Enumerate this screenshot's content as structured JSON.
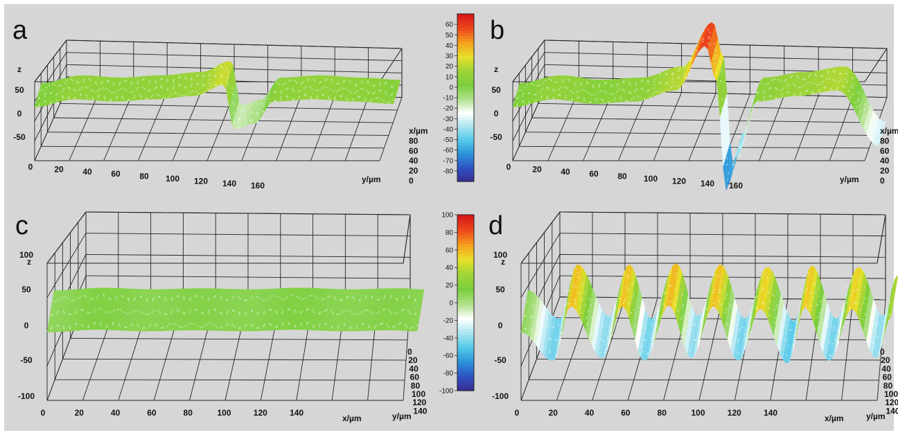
{
  "figure": {
    "background": "#d6d6d6",
    "border": "#ffffff"
  },
  "chart_data": [
    {
      "type": "surface3d",
      "panel": "a",
      "x_axis_label": "x/µm",
      "y_axis_label": "y/µm",
      "z_axis_label": "z",
      "y_ticks": [
        "0",
        "20",
        "40",
        "60",
        "80",
        "100",
        "120",
        "140",
        "160"
      ],
      "x_ticks": [
        "x/µm",
        "80",
        "60",
        "40",
        "20",
        "0"
      ],
      "z_ticks": [
        "50",
        "0",
        "-50"
      ],
      "xlim": [
        0,
        90
      ],
      "ylim": [
        0,
        180
      ],
      "zlim": [
        -80,
        70
      ],
      "grid": true,
      "surface": {
        "description_profile_y": [
          0,
          20,
          40,
          60,
          80,
          95,
          100,
          110,
          120,
          140,
          160,
          180
        ],
        "description_profile_z": [
          5,
          12,
          10,
          12,
          15,
          25,
          -15,
          -10,
          10,
          12,
          10,
          8
        ]
      }
    },
    {
      "type": "surface3d",
      "panel": "b",
      "x_axis_label": "x/µm",
      "y_axis_label": "y/µm",
      "z_axis_label": "z",
      "y_ticks": [
        "0",
        "20",
        "40",
        "60",
        "80",
        "100",
        "120",
        "140",
        "160"
      ],
      "x_ticks": [
        "x/µm",
        "80",
        "60",
        "40",
        "20",
        "0"
      ],
      "z_ticks": [
        "50",
        "0",
        "-50"
      ],
      "xlim": [
        0,
        90
      ],
      "ylim": [
        0,
        180
      ],
      "zlim": [
        -80,
        70
      ],
      "grid": true,
      "surface": {
        "description_profile_y": [
          0,
          20,
          40,
          60,
          80,
          95,
          100,
          105,
          110,
          120,
          140,
          160,
          180
        ],
        "description_profile_z": [
          5,
          12,
          8,
          10,
          20,
          60,
          30,
          -70,
          -40,
          10,
          15,
          20,
          -30
        ]
      }
    },
    {
      "type": "colorbar",
      "for_panels": [
        "a",
        "b"
      ],
      "ticks": [
        "60",
        "50",
        "40",
        "30",
        "20",
        "10",
        "0",
        "-10",
        "-20",
        "-30",
        "-40",
        "-50",
        "-60",
        "-70",
        "-80"
      ],
      "range": [
        -90,
        70
      ],
      "colormap": [
        "#3a2a8c",
        "#2f4fc0",
        "#2b8fd8",
        "#52c8e8",
        "#a9e4f0",
        "#ffffff",
        "#aee08a",
        "#7ccf3c",
        "#9fd43a",
        "#e8e02a",
        "#f5a21e",
        "#ee4a1c",
        "#d81818"
      ]
    },
    {
      "type": "surface3d",
      "panel": "c",
      "x_axis_label": "x/µm",
      "y_axis_label": "y/µm",
      "z_axis_label": "z",
      "x_ticks": [
        "0",
        "20",
        "40",
        "60",
        "80",
        "100",
        "120",
        "140"
      ],
      "y_ticks": [
        "0",
        "20",
        "40",
        "60",
        "80",
        "100",
        "120",
        "140"
      ],
      "z_ticks": [
        "100",
        "50",
        "0",
        "-50",
        "-100"
      ],
      "xlim": [
        0,
        150
      ],
      "ylim": [
        0,
        150
      ],
      "zlim": [
        -100,
        100
      ],
      "grid": true,
      "surface": {
        "description_profile_x": [
          0,
          20,
          40,
          60,
          80,
          100,
          120,
          140,
          150
        ],
        "description_profile_z": [
          10,
          15,
          12,
          14,
          12,
          15,
          12,
          14,
          12
        ]
      }
    },
    {
      "type": "colorbar",
      "for_panels": [
        "c",
        "d"
      ],
      "ticks": [
        "100",
        "80",
        "60",
        "40",
        "20",
        "0",
        "-20",
        "-40",
        "-60",
        "-80",
        "-100"
      ],
      "range": [
        -100,
        100
      ],
      "colormap": [
        "#3a2a8c",
        "#2f4fc0",
        "#2b8fd8",
        "#52c8e8",
        "#a9e4f0",
        "#ffffff",
        "#aee08a",
        "#7ccf3c",
        "#9fd43a",
        "#e8e02a",
        "#f5a21e",
        "#ee4a1c",
        "#d81818"
      ]
    },
    {
      "type": "surface3d",
      "panel": "d",
      "x_axis_label": "x/µm",
      "y_axis_label": "y/µm",
      "z_axis_label": "z",
      "x_ticks": [
        "0",
        "20",
        "40",
        "60",
        "80",
        "100",
        "120",
        "140"
      ],
      "y_ticks": [
        "0",
        "20",
        "40",
        "60",
        "80",
        "100",
        "120",
        "140"
      ],
      "z_ticks": [
        "100",
        "50",
        "0",
        "-50",
        "-100"
      ],
      "xlim": [
        0,
        150
      ],
      "ylim": [
        0,
        150
      ],
      "zlim": [
        -100,
        100
      ],
      "grid": true,
      "surface": {
        "description_profile_x": [
          0,
          13,
          20,
          33,
          41,
          50,
          60,
          69,
          78,
          88,
          97,
          108,
          115,
          125,
          134,
          144,
          150
        ],
        "description_profile_z": [
          10,
          -45,
          60,
          -40,
          60,
          -45,
          62,
          -40,
          60,
          -45,
          55,
          -50,
          58,
          -45,
          55,
          -40,
          40
        ]
      }
    }
  ]
}
